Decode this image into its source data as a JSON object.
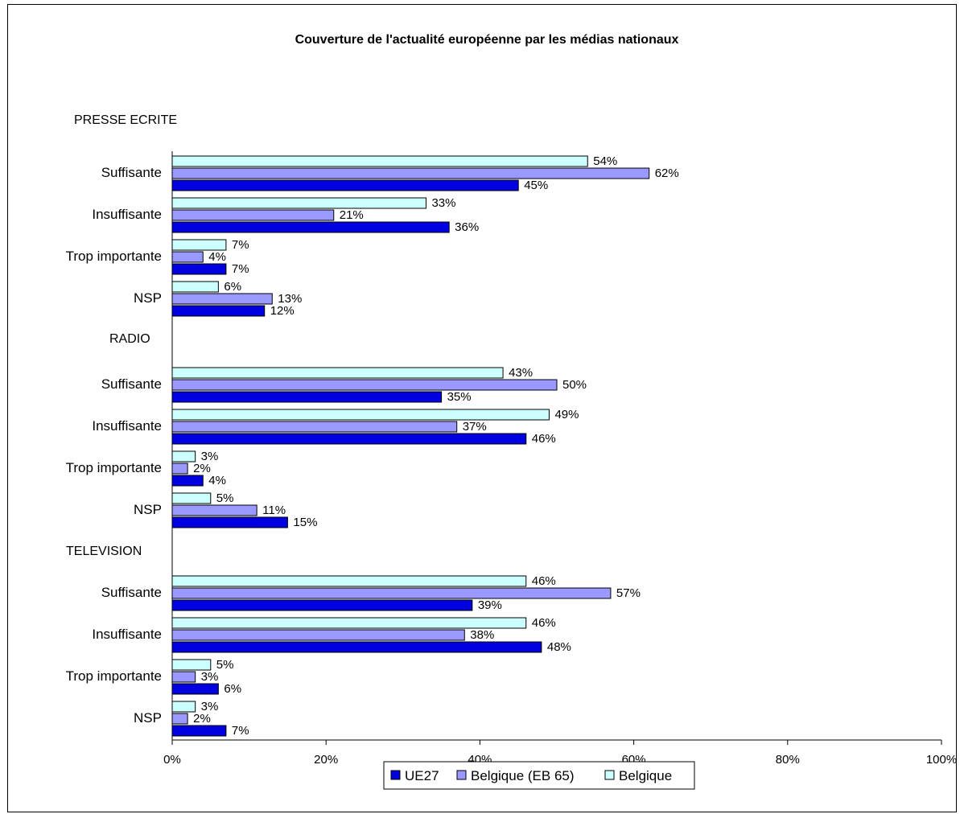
{
  "chart_data": {
    "type": "bar",
    "orientation": "horizontal",
    "title": "Couverture de l'actualité européenne par les médias nationaux",
    "xlim": [
      0,
      100
    ],
    "x_ticks": [
      "0%",
      "20%",
      "40%",
      "60%",
      "80%",
      "100%"
    ],
    "grid": false,
    "legend_position": "bottom",
    "series": [
      {
        "name": "UE27",
        "color": "#0000e0"
      },
      {
        "name": "Belgique (EB 65)",
        "color": "#9999ff"
      },
      {
        "name": "Belgique",
        "color": "#ccffff"
      }
    ],
    "groups": [
      {
        "name": "PRESSE ECRITE",
        "categories": [
          {
            "label": "Suffisante",
            "values": {
              "Belgique": 54,
              "Belgique (EB 65)": 62,
              "UE27": 45
            }
          },
          {
            "label": "Insuffisante",
            "values": {
              "Belgique": 33,
              "Belgique (EB 65)": 21,
              "UE27": 36
            }
          },
          {
            "label": "Trop importante",
            "values": {
              "Belgique": 7,
              "Belgique (EB 65)": 4,
              "UE27": 7
            }
          },
          {
            "label": "NSP",
            "values": {
              "Belgique": 6,
              "Belgique (EB 65)": 13,
              "UE27": 12
            }
          }
        ]
      },
      {
        "name": "RADIO",
        "categories": [
          {
            "label": "Suffisante",
            "values": {
              "Belgique": 43,
              "Belgique (EB 65)": 50,
              "UE27": 35
            }
          },
          {
            "label": "Insuffisante",
            "values": {
              "Belgique": 49,
              "Belgique (EB 65)": 37,
              "UE27": 46
            }
          },
          {
            "label": "Trop importante",
            "values": {
              "Belgique": 3,
              "Belgique (EB 65)": 2,
              "UE27": 4
            }
          },
          {
            "label": "NSP",
            "values": {
              "Belgique": 5,
              "Belgique (EB 65)": 11,
              "UE27": 15
            }
          }
        ]
      },
      {
        "name": "TELEVISION",
        "categories": [
          {
            "label": "Suffisante",
            "values": {
              "Belgique": 46,
              "Belgique (EB 65)": 57,
              "UE27": 39
            }
          },
          {
            "label": "Insuffisante",
            "values": {
              "Belgique": 46,
              "Belgique (EB 65)": 38,
              "UE27": 48
            }
          },
          {
            "label": "Trop importante",
            "values": {
              "Belgique": 5,
              "Belgique (EB 65)": 3,
              "UE27": 6
            }
          },
          {
            "label": "NSP",
            "values": {
              "Belgique": 3,
              "Belgique (EB 65)": 2,
              "UE27": 7
            }
          }
        ]
      }
    ]
  }
}
